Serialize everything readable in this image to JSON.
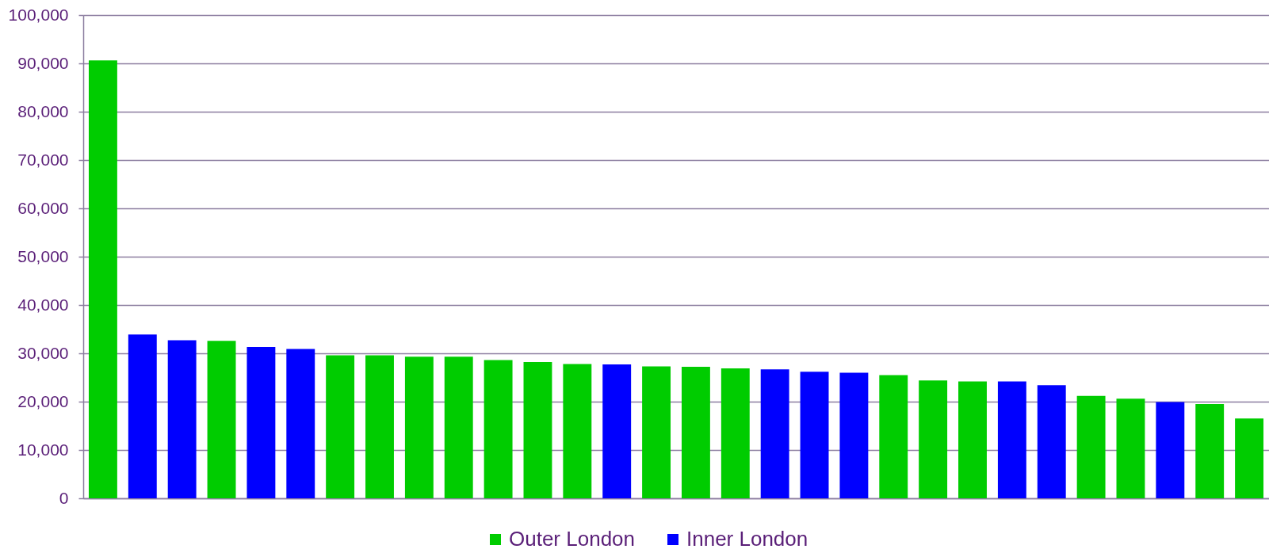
{
  "chart_data": {
    "type": "bar",
    "stacked": true,
    "categories": [
      null,
      null,
      null,
      null,
      null,
      null,
      null,
      null,
      null,
      null,
      null,
      null,
      null,
      null,
      null,
      null,
      null,
      null,
      null,
      null,
      null,
      null,
      null,
      null,
      null,
      null,
      null,
      null,
      null,
      null
    ],
    "series": [
      {
        "name": "Outer London",
        "color": "#00cc00",
        "values": [
          90600,
          null,
          null,
          32600,
          null,
          null,
          29600,
          29600,
          29300,
          29300,
          28600,
          28200,
          27800,
          null,
          27300,
          27200,
          26900,
          null,
          null,
          null,
          25500,
          24400,
          24200,
          null,
          null,
          21200,
          20600,
          null,
          19500,
          16500
        ]
      },
      {
        "name": "Inner London",
        "color": "#0000ff",
        "values": [
          null,
          33900,
          32700,
          null,
          31300,
          30900,
          null,
          null,
          null,
          null,
          null,
          null,
          null,
          27700,
          null,
          null,
          null,
          26700,
          26200,
          26000,
          null,
          null,
          null,
          24200,
          23400,
          null,
          null,
          19900,
          null,
          null
        ]
      }
    ],
    "ylim": [
      0,
      100000
    ],
    "yticks": [
      0,
      {
        "value": 10000,
        "label": "10,000"
      },
      {
        "value": 20000,
        "label": "20,000"
      },
      {
        "value": 30000,
        "label": "30,000"
      },
      {
        "value": 40000,
        "label": "40,000"
      },
      {
        "value": 50000,
        "label": "50,000"
      },
      {
        "value": 60000,
        "label": "60,000"
      },
      {
        "value": 70000,
        "label": "70,000"
      },
      {
        "value": 80000,
        "label": "80,000"
      },
      {
        "value": 90000,
        "label": "90,000"
      },
      {
        "value": 100000,
        "label": "100,000"
      }
    ],
    "grid": "y",
    "legend": "bottom",
    "tick_labels": "y"
  }
}
